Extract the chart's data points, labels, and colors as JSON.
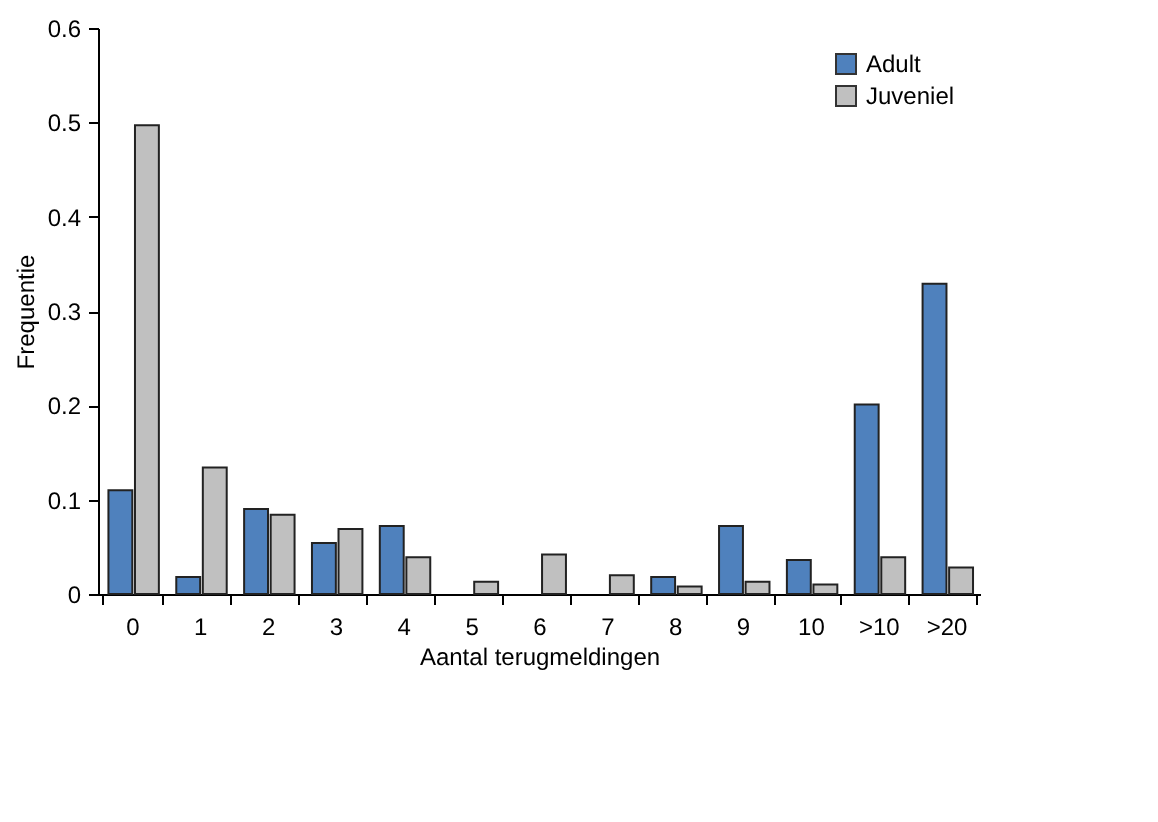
{
  "chart_data": {
    "type": "bar",
    "xlabel": "Aantal terugmeldingen",
    "ylabel": "Frequentie",
    "categories": [
      "0",
      "1",
      "2",
      "3",
      "4",
      "5",
      "6",
      "7",
      "8",
      "9",
      "10",
      ">10",
      ">20"
    ],
    "series": [
      {
        "name": "Adult",
        "color": "#4f81bd",
        "values": [
          0.11,
          0.018,
          0.09,
          0.054,
          0.072,
          null,
          null,
          null,
          0.018,
          0.072,
          0.036,
          0.201,
          0.329
        ]
      },
      {
        "name": "Juveniel",
        "color": "#c0c0c0",
        "values": [
          0.497,
          0.134,
          0.084,
          0.069,
          0.039,
          0.013,
          0.042,
          0.02,
          0.008,
          0.013,
          0.01,
          0.039,
          0.028
        ]
      }
    ],
    "ylim": [
      0,
      0.6
    ],
    "yticks": [
      0,
      0.1,
      0.2,
      0.3,
      0.4,
      0.5,
      0.6
    ],
    "grid": false,
    "legend": "top right"
  }
}
